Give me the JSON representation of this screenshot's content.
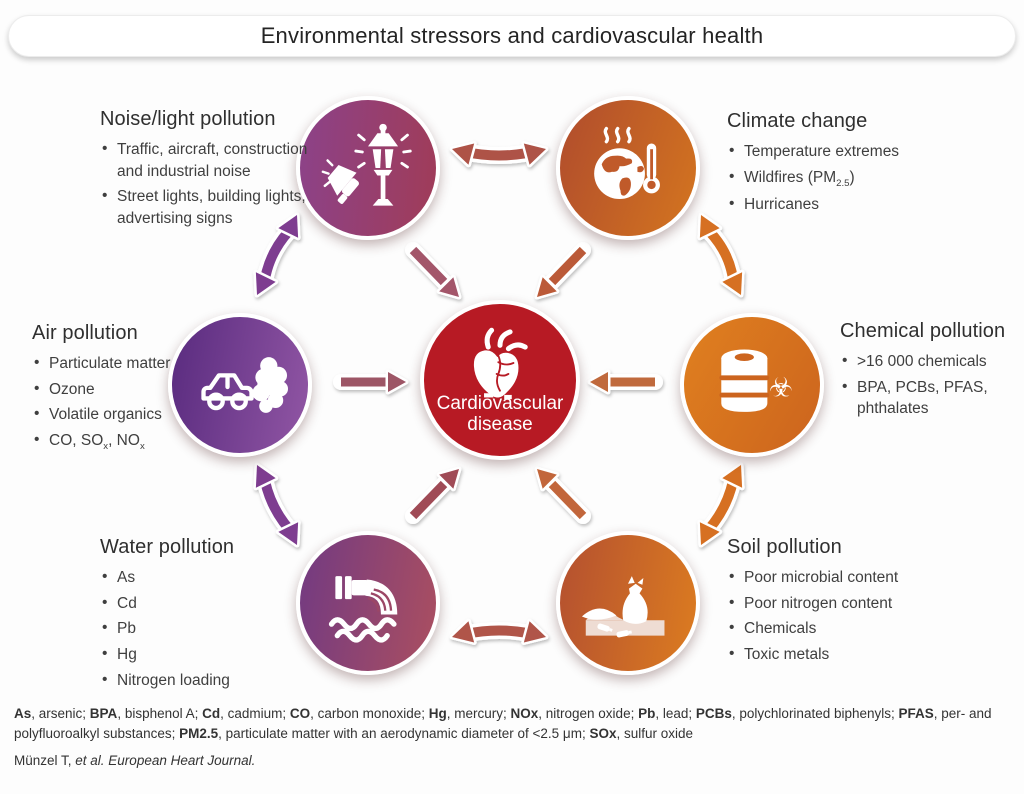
{
  "title": "Environmental stressors and cardiovascular health",
  "center": {
    "label": "Cardiovascular disease"
  },
  "sections": {
    "noise": {
      "title": "Noise/light pollution",
      "bullets": [
        "Traffic, aircraft, construction and industrial noise",
        "Street lights, building lights, advertising signs"
      ]
    },
    "climate": {
      "title": "Climate change",
      "bullets": [
        "Temperature extremes",
        [
          {
            "t": "Wildfires (PM"
          },
          {
            "t": "2.5",
            "sub": true
          },
          {
            "t": ")"
          }
        ],
        "Hurricanes"
      ]
    },
    "air": {
      "title": "Air pollution",
      "bullets": [
        "Particulate matter",
        "Ozone",
        "Volatile organics",
        [
          {
            "t": "CO, SO"
          },
          {
            "t": "x",
            "sub": true
          },
          {
            "t": ", NO"
          },
          {
            "t": "x",
            "sub": true
          }
        ]
      ]
    },
    "chemical": {
      "title": "Chemical pollution",
      "bullets": [
        ">16 000 chemicals",
        "BPA, PCBs, PFAS, phthalates"
      ]
    },
    "water": {
      "title": "Water pollution",
      "bullets": [
        "As",
        "Cd",
        "Pb",
        "Hg",
        "Nitrogen loading"
      ]
    },
    "soil": {
      "title": "Soil pollution",
      "bullets": [
        "Poor microbial content",
        "Poor nitrogen content",
        "Chemicals",
        "Toxic metals"
      ]
    }
  },
  "footer": {
    "abbreviations": [
      {
        "t": "As",
        "b": true
      },
      {
        "t": ", arsenic; "
      },
      {
        "t": "BPA",
        "b": true
      },
      {
        "t": ", bisphenol A; "
      },
      {
        "t": "Cd",
        "b": true
      },
      {
        "t": ", cadmium; "
      },
      {
        "t": "CO",
        "b": true
      },
      {
        "t": ", carbon monoxide; "
      },
      {
        "t": "Hg",
        "b": true
      },
      {
        "t": ", mercury; "
      },
      {
        "t": "NOx",
        "b": true
      },
      {
        "t": ", nitrogen oxide; "
      },
      {
        "t": "Pb",
        "b": true
      },
      {
        "t": ", lead; "
      },
      {
        "t": "PCBs",
        "b": true
      },
      {
        "t": ", polychlorinated biphenyls; "
      },
      {
        "t": "PFAS",
        "b": true
      },
      {
        "t": ", per- and polyfluoroalkyl substances; "
      },
      {
        "t": "PM2.5",
        "b": true
      },
      {
        "t": ", particulate matter with an aerodynamic diameter of <2.5 μm; "
      },
      {
        "t": "SOx",
        "b": true
      },
      {
        "t": ", sulfur oxide"
      }
    ],
    "citation": [
      {
        "t": "Münzel T, "
      },
      {
        "t": "et al. European Heart Journal.",
        "i": true
      }
    ]
  },
  "icons": {
    "biohazard_glyph": "☣",
    "noise": "street-lamp-and-megaphone",
    "climate": "globe-heatwaves-thermometer",
    "air": "car-with-exhaust-cloud",
    "chemical": "barrel-with-biohazard",
    "water": "sewage-pipe-into-waves",
    "soil": "trash-bag-on-soil",
    "center": "anatomical-heart"
  },
  "colors": {
    "center_circle": "#b71a24",
    "noise_from": "#8c4289",
    "noise_to": "#a03c58",
    "climate_from": "#b04c2d",
    "climate_to": "#d4751f",
    "climate_land": "#c05a2a",
    "air_from": "#592b7f",
    "air_to": "#9156a4",
    "chem_from": "#e0801f",
    "chem_to": "#cc641e",
    "water_from": "#723a82",
    "water_to": "#ab4f60",
    "water_lines": "#9c4766",
    "soil_from": "#b45030",
    "soil_to": "#dc7c20",
    "soil_ground": "#eedcd3",
    "ring_top": "#ae5347",
    "ring_bottom": "#b0544a",
    "ring_left": "#7e3d90",
    "ring_right": "#d66f22",
    "in_topleft": "#a3566a",
    "in_topright": "#bb5a39",
    "in_left": "#9d5666",
    "in_right": "#c06a3e",
    "in_bottomleft": "#a04b56",
    "in_bottomright": "#c2663b"
  }
}
